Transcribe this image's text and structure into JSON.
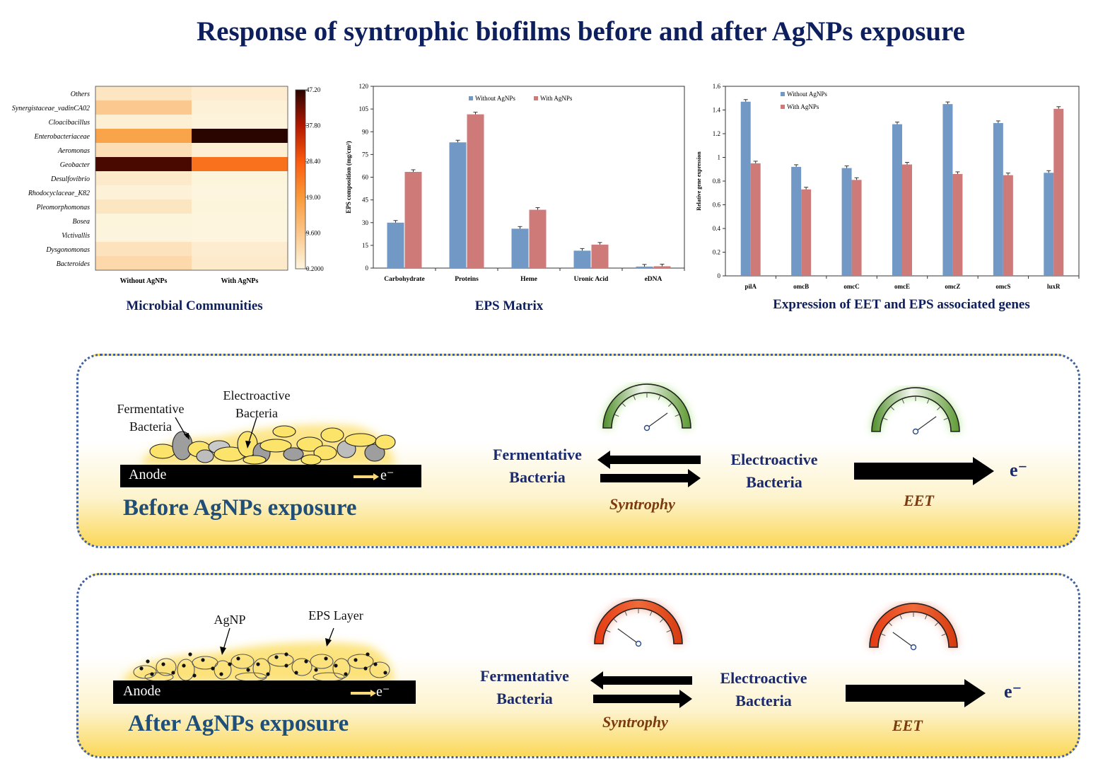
{
  "title": "Response of syntrophic biofilms before and after AgNPs exposure",
  "captions": {
    "microbial": "Microbial Communities",
    "eps": "EPS Matrix",
    "genes": "Expression of EET and EPS associated genes"
  },
  "chart_data": [
    {
      "type": "heatmap",
      "rows": [
        "Others",
        "Synergistaceae_vadinCA02",
        "Cloacibacillus",
        "Enterobacteriaceae",
        "Aeromonas",
        "Geobacter",
        "Desulfovibrio",
        "Rhodocyclaceae_K82",
        "Pleomorphomonas",
        "Bosea",
        "Victivallis",
        "Dysgonomonas",
        "Bacteroides"
      ],
      "columns": [
        "Without AgNPs",
        "With AgNPs"
      ],
      "values": [
        [
          3.5,
          2.0
        ],
        [
          9.0,
          1.0
        ],
        [
          1.5,
          0.8
        ],
        [
          17.0,
          47.2
        ],
        [
          5.0,
          1.5
        ],
        [
          45.0,
          25.0
        ],
        [
          2.5,
          0.5
        ],
        [
          1.0,
          0.3
        ],
        [
          3.5,
          0.5
        ],
        [
          0.5,
          0.3
        ],
        [
          0.4,
          0.3
        ],
        [
          4.0,
          2.0
        ],
        [
          6.0,
          2.5
        ]
      ],
      "colorbar_ticks": [
        "47.20",
        "37.80",
        "28.40",
        "19.00",
        "9.600",
        "0.2000"
      ],
      "range": [
        0.2,
        47.2
      ]
    },
    {
      "type": "bar",
      "categories": [
        "Carbohydrate",
        "Proteins",
        "Heme",
        "Uronic Acid",
        "eDNA"
      ],
      "series": [
        {
          "name": "Without AgNPs",
          "color": "#7299c6",
          "values": [
            30,
            83,
            26,
            11.5,
            1
          ]
        },
        {
          "name": "With AgNPs",
          "color": "#cd7a79",
          "values": [
            63.5,
            101.5,
            38.5,
            15.5,
            1.2
          ]
        }
      ],
      "ylabel": "EPS composition (mg/cm²)",
      "ylim": [
        0,
        120
      ],
      "yticks": [
        "0",
        "15",
        "30",
        "45",
        "60",
        "75",
        "90",
        "105",
        "120"
      ]
    },
    {
      "type": "bar",
      "categories": [
        "pilA",
        "omcB",
        "omcC",
        "omcE",
        "omcZ",
        "omcS",
        "luxR"
      ],
      "series": [
        {
          "name": "Without AgNPs",
          "color": "#7299c6",
          "values": [
            1.47,
            0.92,
            0.91,
            1.28,
            1.45,
            1.29,
            0.87
          ]
        },
        {
          "name": "With AgNPs",
          "color": "#cd7a79",
          "values": [
            0.95,
            0.73,
            0.81,
            0.94,
            0.86,
            0.85,
            1.41
          ]
        }
      ],
      "ylabel": "Relative gene expression",
      "ylim": [
        0,
        1.6
      ],
      "yticks": [
        "0",
        "0.2",
        "0.4",
        "0.6",
        "0.8",
        "1",
        "1.2",
        "1.4",
        "1.6"
      ]
    }
  ],
  "before": {
    "heading": "Before AgNPs exposure",
    "fermentative_label": "Fermentative\nBacteria",
    "electroactive_label": "Electroactive\nBacteria",
    "anode": "Anode",
    "electron_small": "e⁻",
    "node_left": "Fermentative\nBacteria",
    "node_right": "Electroactive\nBacteria",
    "process_left": "Syntrophy",
    "process_right": "EET",
    "electron": "e⁻",
    "gauge_color": "green",
    "gauge_level": 0.8
  },
  "after": {
    "heading": "After AgNPs exposure",
    "agnp_label": "AgNP",
    "eps_label": "EPS Layer",
    "anode": "Anode",
    "electron_small": "e⁻",
    "node_left": "Fermentative\nBacteria",
    "node_right": "Electroactive\nBacteria",
    "process_left": "Syntrophy",
    "process_right": "EET",
    "electron": "e⁻",
    "gauge_color": "red",
    "gauge_level": 0.2
  }
}
